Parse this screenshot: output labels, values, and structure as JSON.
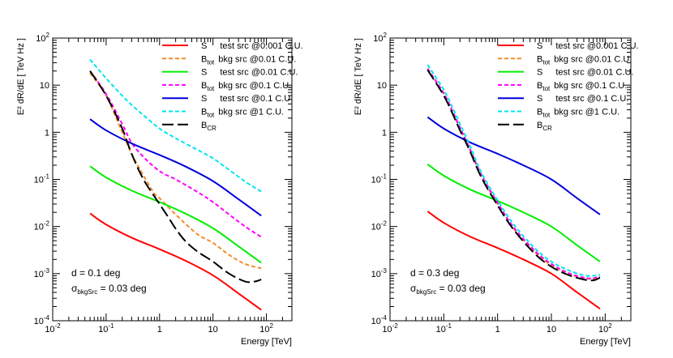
{
  "chart_data": [
    {
      "type": "line",
      "panel": "left",
      "title": "",
      "xlabel": "Energy [TeV]",
      "ylabel": "E² dR/dE [ TeV Hz ]",
      "xscale": "log",
      "yscale": "log",
      "xlim": [
        0.01,
        300
      ],
      "ylim": [
        0.0001,
        100
      ],
      "grid": false,
      "legend_position": "top-right",
      "x_ticks": [
        {
          "base": "10",
          "exp": "-2"
        },
        {
          "base": "10",
          "exp": "-1"
        },
        {
          "base": "1",
          "exp": ""
        },
        {
          "base": "10",
          "exp": ""
        },
        {
          "base": "10",
          "exp": "2"
        }
      ],
      "y_ticks": [
        {
          "base": "10",
          "exp": "-4"
        },
        {
          "base": "10",
          "exp": "-3"
        },
        {
          "base": "10",
          "exp": "-2"
        },
        {
          "base": "10",
          "exp": "-1"
        },
        {
          "base": "1",
          "exp": ""
        },
        {
          "base": "10",
          "exp": ""
        },
        {
          "base": "10",
          "exp": "2"
        }
      ],
      "annotations": [
        {
          "text": "d = 0.1 deg"
        },
        {
          "text": "σ",
          "sub": "bkgSrc",
          "rest": " = 0.03 deg"
        }
      ],
      "series": [
        {
          "key": "S_0.001",
          "legend_main": "S",
          "legend_sub": "",
          "legend_rest": "test src @0.001 C.U.",
          "color": "#ff0000",
          "dash": "solid",
          "x": [
            0.05,
            0.1,
            0.3,
            1,
            3,
            10,
            30,
            80
          ],
          "y": [
            0.019,
            0.011,
            0.0058,
            0.0033,
            0.0019,
            0.00092,
            0.00038,
            0.00017
          ]
        },
        {
          "key": "Btot_0.01",
          "legend_main": "B",
          "legend_sub": "tot",
          "legend_rest": "bkg src @0.01 C.U.",
          "color": "#f28c28",
          "dash": "dashed",
          "x": [
            0.05,
            0.1,
            0.2,
            0.3,
            0.5,
            0.8,
            1,
            2,
            5,
            10,
            20,
            40,
            80
          ],
          "y": [
            18,
            6,
            1.0,
            0.35,
            0.12,
            0.05,
            0.04,
            0.018,
            0.007,
            0.0045,
            0.0025,
            0.0016,
            0.0013
          ]
        },
        {
          "key": "S_0.01",
          "legend_main": "S",
          "legend_sub": "",
          "legend_rest": "test src @0.01 C.U.",
          "color": "#00ee00",
          "dash": "solid",
          "x": [
            0.05,
            0.1,
            0.3,
            1,
            3,
            10,
            30,
            80
          ],
          "y": [
            0.19,
            0.11,
            0.058,
            0.033,
            0.019,
            0.0092,
            0.0038,
            0.0017
          ]
        },
        {
          "key": "Btot_0.1",
          "legend_main": "B",
          "legend_sub": "tot",
          "legend_rest": "bkg src @0.1 C.U.",
          "color": "#ff00ff",
          "dash": "dashed",
          "x": [
            0.05,
            0.1,
            0.2,
            0.3,
            0.5,
            1,
            2,
            5,
            10,
            20,
            40,
            80
          ],
          "y": [
            20,
            6.5,
            1.5,
            0.6,
            0.3,
            0.15,
            0.1,
            0.055,
            0.033,
            0.018,
            0.01,
            0.006
          ]
        },
        {
          "key": "S_0.1",
          "legend_main": "S",
          "legend_sub": "",
          "legend_rest": "test src @0.1 C.U.",
          "color": "#0000dd",
          "dash": "solid",
          "x": [
            0.05,
            0.1,
            0.3,
            1,
            3,
            10,
            30,
            80
          ],
          "y": [
            1.9,
            1.1,
            0.58,
            0.33,
            0.19,
            0.092,
            0.038,
            0.017
          ]
        },
        {
          "key": "Btot_1",
          "legend_main": "B",
          "legend_sub": "tot",
          "legend_rest": "bkg src @1 C.U.",
          "color": "#00e5ee",
          "dash": "dashed",
          "x": [
            0.05,
            0.1,
            0.2,
            0.3,
            0.5,
            1,
            2,
            5,
            10,
            20,
            40,
            80
          ],
          "y": [
            35,
            14,
            6,
            3.8,
            2.3,
            1.2,
            0.75,
            0.43,
            0.28,
            0.16,
            0.09,
            0.055
          ]
        },
        {
          "key": "BCR",
          "legend_main": "B",
          "legend_sub": "CR",
          "legend_rest": "",
          "color": "#000000",
          "dash": "longdash",
          "x": [
            0.05,
            0.1,
            0.2,
            0.3,
            0.5,
            1,
            1.5,
            2,
            3,
            5,
            10,
            20,
            40,
            60,
            80
          ],
          "y": [
            20,
            6,
            1.2,
            0.35,
            0.1,
            0.03,
            0.015,
            0.009,
            0.005,
            0.003,
            0.0018,
            0.001,
            0.00068,
            0.00068,
            0.00075
          ]
        }
      ]
    },
    {
      "type": "line",
      "panel": "right",
      "title": "",
      "xlabel": "Energy [TeV]",
      "ylabel": "E² dR/dE [ TeV Hz ]",
      "xscale": "log",
      "yscale": "log",
      "xlim": [
        0.01,
        300
      ],
      "ylim": [
        0.0001,
        100
      ],
      "grid": false,
      "legend_position": "top-right",
      "x_ticks": [
        {
          "base": "10",
          "exp": "-2"
        },
        {
          "base": "10",
          "exp": "-1"
        },
        {
          "base": "1",
          "exp": ""
        },
        {
          "base": "10",
          "exp": ""
        },
        {
          "base": "10",
          "exp": "2"
        }
      ],
      "y_ticks": [
        {
          "base": "10",
          "exp": "-4"
        },
        {
          "base": "10",
          "exp": "-3"
        },
        {
          "base": "10",
          "exp": "-2"
        },
        {
          "base": "10",
          "exp": "-1"
        },
        {
          "base": "1",
          "exp": ""
        },
        {
          "base": "10",
          "exp": ""
        },
        {
          "base": "10",
          "exp": "2"
        }
      ],
      "annotations": [
        {
          "text": "d = 0.3 deg"
        },
        {
          "text": "σ",
          "sub": "bkgSrc",
          "rest": " = 0.03 deg"
        }
      ],
      "series": [
        {
          "key": "S_0.001",
          "legend_main": "S",
          "legend_sub": "",
          "legend_rest": "test src @0.001 C.U.",
          "color": "#ff0000",
          "dash": "solid",
          "x": [
            0.05,
            0.1,
            0.3,
            1,
            3,
            10,
            30,
            80
          ],
          "y": [
            0.021,
            0.012,
            0.0062,
            0.0035,
            0.002,
            0.001,
            0.0004,
            0.00018
          ]
        },
        {
          "key": "Btot_0.01",
          "legend_main": "B",
          "legend_sub": "tot",
          "legend_rest": "bkg src @0.01 C.U.",
          "color": "#f28c28",
          "dash": "dashed",
          "x": [
            0.05,
            0.1,
            0.15,
            0.2,
            0.3,
            0.5,
            1,
            2,
            5,
            10,
            20,
            40,
            60,
            80
          ],
          "y": [
            22,
            6.5,
            2.5,
            1.2,
            0.45,
            0.12,
            0.03,
            0.009,
            0.0028,
            0.0015,
            0.001,
            0.0008,
            0.00078,
            0.00085
          ]
        },
        {
          "key": "S_0.01",
          "legend_main": "S",
          "legend_sub": "",
          "legend_rest": "test src @0.01 C.U.",
          "color": "#00ee00",
          "dash": "solid",
          "x": [
            0.05,
            0.1,
            0.3,
            1,
            3,
            10,
            30,
            80
          ],
          "y": [
            0.21,
            0.12,
            0.062,
            0.035,
            0.02,
            0.01,
            0.004,
            0.0018
          ]
        },
        {
          "key": "Btot_0.1",
          "legend_main": "B",
          "legend_sub": "tot",
          "legend_rest": "bkg src @0.1 C.U.",
          "color": "#ff00ff",
          "dash": "dashed",
          "x": [
            0.05,
            0.1,
            0.15,
            0.2,
            0.3,
            0.5,
            1,
            2,
            5,
            10,
            20,
            40,
            60,
            80
          ],
          "y": [
            22.5,
            6.7,
            2.6,
            1.25,
            0.47,
            0.125,
            0.032,
            0.0095,
            0.003,
            0.0016,
            0.00105,
            0.00082,
            0.0008,
            0.00088
          ]
        },
        {
          "key": "S_0.1",
          "legend_main": "S",
          "legend_sub": "",
          "legend_rest": "test src @0.1 C.U.",
          "color": "#0000dd",
          "dash": "solid",
          "x": [
            0.05,
            0.1,
            0.3,
            1,
            3,
            10,
            30,
            80
          ],
          "y": [
            2.1,
            1.2,
            0.62,
            0.35,
            0.2,
            0.1,
            0.04,
            0.018
          ]
        },
        {
          "key": "Btot_1",
          "legend_main": "B",
          "legend_sub": "tot",
          "legend_rest": "bkg src @1 C.U.",
          "color": "#00e5ee",
          "dash": "dashed",
          "x": [
            0.05,
            0.1,
            0.15,
            0.2,
            0.3,
            0.5,
            1,
            2,
            5,
            10,
            20,
            40,
            60,
            80
          ],
          "y": [
            27,
            8,
            3.1,
            1.5,
            0.55,
            0.14,
            0.036,
            0.011,
            0.0034,
            0.0018,
            0.0012,
            0.00092,
            0.0009,
            0.00095
          ]
        },
        {
          "key": "BCR",
          "legend_main": "B",
          "legend_sub": "CR",
          "legend_rest": "",
          "color": "#000000",
          "dash": "longdash",
          "x": [
            0.05,
            0.1,
            0.15,
            0.2,
            0.3,
            0.5,
            1,
            2,
            5,
            10,
            20,
            40,
            60,
            80
          ],
          "y": [
            21,
            6,
            2.3,
            1.1,
            0.42,
            0.11,
            0.028,
            0.0085,
            0.0026,
            0.0014,
            0.00095,
            0.00075,
            0.00072,
            0.00082
          ]
        }
      ]
    }
  ]
}
